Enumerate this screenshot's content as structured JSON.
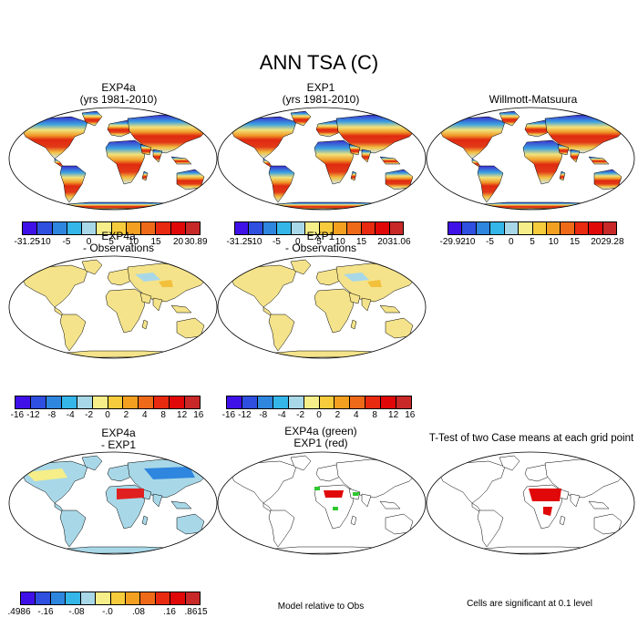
{
  "title": "ANN TSA (C)",
  "panels": {
    "p1": {
      "line1": "EXP4a",
      "line2": "(yrs 1981-2010)"
    },
    "p2": {
      "line1": "EXP1",
      "line2": "(yrs 1981-2010)"
    },
    "p3": {
      "line1": "Willmott-Matsuura"
    },
    "p4": {
      "line1": "EXP4a",
      "line2": "- Observations"
    },
    "p5": {
      "line1": "EXP1",
      "line2": "- Observations"
    },
    "p6": {
      "line1": "EXP4a",
      "line2": "- EXP1"
    },
    "p7": {
      "line1": "EXP4a (green)",
      "line2": "EXP1 (red)"
    },
    "p8": {
      "line1": "T-Test of two Case means at each grid point"
    }
  },
  "colorbars": {
    "cb1": {
      "labels": [
        "-31.25",
        "-10",
        "-5",
        "0",
        "5",
        "10",
        "15",
        "20",
        "30.89"
      ]
    },
    "cb2": {
      "labels": [
        "-31.25",
        "-10",
        "-5",
        "0",
        "5",
        "10",
        "15",
        "20",
        "31.06"
      ]
    },
    "cb3": {
      "labels": [
        "-29.92",
        "-10",
        "-5",
        "0",
        "5",
        "10",
        "15",
        "20",
        "29.28"
      ]
    },
    "cb4": {
      "labels": [
        "-16",
        "-12",
        "-8",
        "-4",
        "-2",
        "0",
        "2",
        "4",
        "8",
        "12",
        "16"
      ]
    },
    "cb5": {
      "labels": [
        "-16",
        "-12",
        "-8",
        "-4",
        "-2",
        "0",
        "2",
        "4",
        "8",
        "12",
        "16"
      ]
    },
    "cb6": {
      "labels": [
        ".4986",
        "-.16",
        "-.08",
        "-.0",
        ".08",
        ".16",
        ".8615"
      ]
    }
  },
  "colors": {
    "abs_scale": [
      "#4010e8",
      "#2e4fe0",
      "#2f86de",
      "#35b6e8",
      "#a8d8e8",
      "#f6ee88",
      "#f7cc3c",
      "#f3a020",
      "#ee6a18",
      "#e82a10",
      "#e00808",
      "#c82828"
    ],
    "diff_scale": [
      "#4010e8",
      "#2e4fe0",
      "#2f86de",
      "#35b6e8",
      "#a8d8e8",
      "#f6ee88",
      "#f7cc3c",
      "#f3a020",
      "#ee6a18",
      "#e82a10",
      "#e00808",
      "#c82828"
    ]
  },
  "notes": {
    "model_relative": "Model relative to Obs",
    "significance": "Cells are significant at 0.1 level"
  }
}
